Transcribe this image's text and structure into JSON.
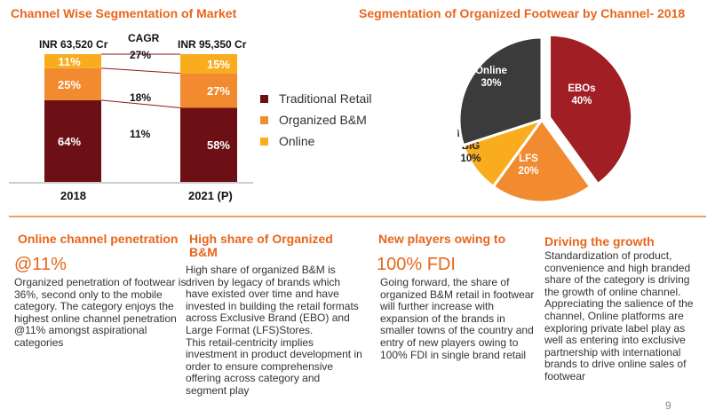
{
  "chart_data": [
    {
      "type": "bar",
      "title": "Channel Wise Segmentation of Market",
      "categories": [
        "2018",
        "2021 (P)"
      ],
      "totals": [
        "INR 63,520 Cr",
        "INR 95,350 Cr"
      ],
      "series": [
        {
          "name": "Traditional Retail",
          "values": [
            64,
            58
          ],
          "labels": [
            "64%",
            "58%"
          ],
          "color": "#6d1015"
        },
        {
          "name": "Organized B&M",
          "values": [
            25,
            27
          ],
          "labels": [
            "25%",
            "27%"
          ],
          "color": "#f28a30"
        },
        {
          "name": "Online",
          "values": [
            11,
            15
          ],
          "labels": [
            "11%",
            "15%"
          ],
          "color": "#f9ad1e"
        }
      ],
      "cagr": {
        "label": "CAGR",
        "values": [
          "27%",
          "18%",
          "11%"
        ]
      }
    },
    {
      "type": "pie",
      "title": "Segmentation of Organized Footwear by Channel- 2018",
      "slices": [
        {
          "name": "EBOs",
          "label": "40%",
          "value": 40,
          "color": "#a01e24"
        },
        {
          "name": "LFS",
          "label": "20%",
          "value": 20,
          "color": "#f28a30"
        },
        {
          "name": "MBO-\nBIG",
          "label": "10%",
          "value": 10,
          "color": "#f9ad1e"
        },
        {
          "name": "Online",
          "label": "30%",
          "value": 30,
          "color": "#3b3b3b"
        }
      ]
    }
  ],
  "sections": [
    {
      "heading": "Online channel penetration",
      "highlight": "@11%",
      "text": "Organized penetration of footwear is 36%, second only to the mobile category. The category enjoys the highest online channel penetration @11% amongst aspirational categories"
    },
    {
      "heading": "High share of Organized B&M",
      "text": "High share of organized B&M is driven by legacy of brands which have existed over time and have invested in building the retail formats across Exclusive Brand (EBO) and Large Format (LFS)Stores.\nThis retail-centricity implies investment in product development in order to ensure comprehensive offering across category and segment play"
    },
    {
      "heading": "New players owing to",
      "highlight": "100% FDI",
      "text": "Going forward, the share of organized B&M retail in footwear will further increase with expansion of the brands in smaller towns of the country and entry of new players owing to 100% FDI in single brand retail"
    },
    {
      "heading": "Driving the growth",
      "text": "Standardization of product, convenience and high branded share of the category is driving the growth of online channel. Appreciating the salience of the channel, Online platforms are exploring private label play as well as entering into exclusive partnership with international brands to drive online sales of footwear"
    }
  ],
  "page_number": "9"
}
